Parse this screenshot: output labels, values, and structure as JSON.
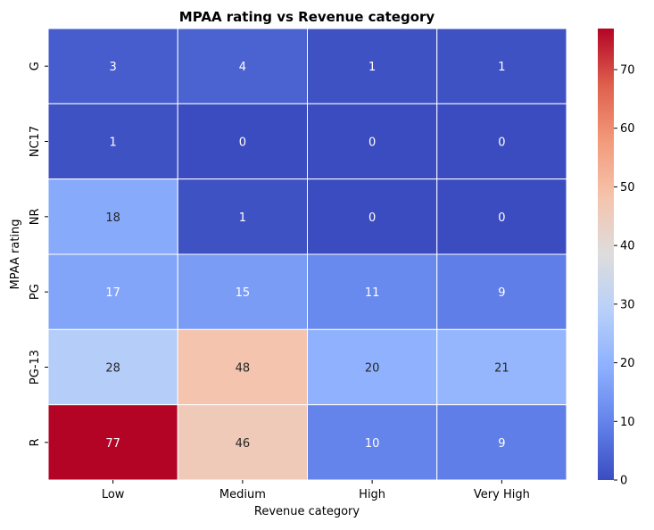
{
  "chart_data": {
    "type": "heatmap",
    "title": "MPAA rating vs Revenue category",
    "xlabel": "Revenue category",
    "ylabel": "MPAA rating",
    "x_categories": [
      "Low",
      "Medium",
      "High",
      "Very High"
    ],
    "y_categories": [
      "G",
      "NC17",
      "NR",
      "PG",
      "PG-13",
      "R"
    ],
    "values": [
      [
        3,
        4,
        1,
        1
      ],
      [
        1,
        0,
        0,
        0
      ],
      [
        18,
        1,
        0,
        0
      ],
      [
        17,
        15,
        11,
        9
      ],
      [
        28,
        48,
        20,
        21
      ],
      [
        77,
        46,
        10,
        9
      ]
    ],
    "colormap": "coolwarm",
    "vmin": 0,
    "vmax": 77,
    "colorbar_ticks": [
      0,
      10,
      20,
      30,
      40,
      50,
      60,
      70
    ],
    "annotation_colors": {
      "light": "#ffffff",
      "dark": "#262626"
    },
    "cell_border_color": "#ffffff"
  }
}
